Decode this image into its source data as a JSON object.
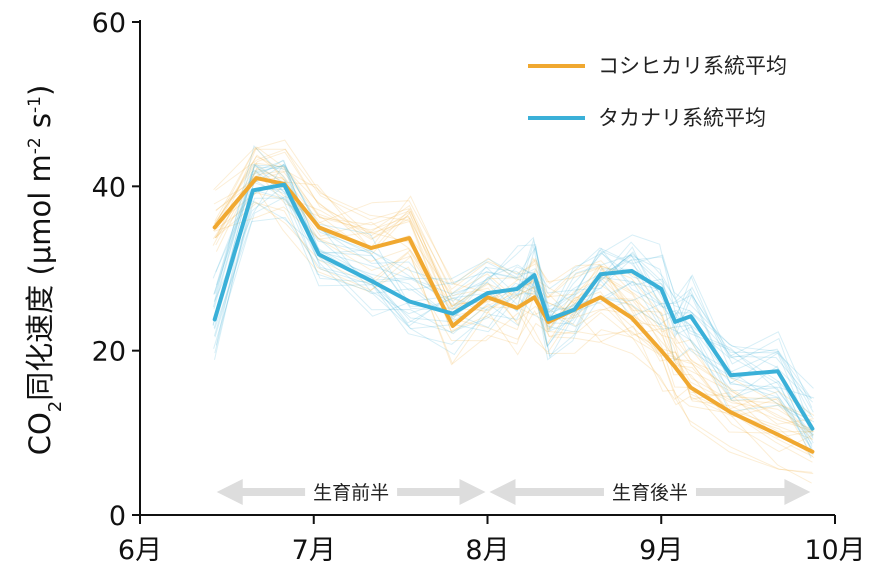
{
  "chart_data": {
    "type": "line",
    "ylabel": "CO₂同化速度 (μmol m⁻² s⁻¹)",
    "ylabel_parts": {
      "co": "CO",
      "sub": "2",
      "rest": "同化速度 (μmol m",
      "exp1": "-2",
      "mid": " s",
      "exp2": "-1",
      "end": ")"
    },
    "ylim": [
      0,
      60
    ],
    "yticks": [
      0,
      20,
      40,
      60
    ],
    "xlim": [
      6.0,
      10.0
    ],
    "xticks": [
      {
        "value": 6,
        "label": "6月"
      },
      {
        "value": 7,
        "label": "7月"
      },
      {
        "value": 8,
        "label": "8月"
      },
      {
        "value": 9,
        "label": "9月"
      },
      {
        "value": 10,
        "label": "10月"
      }
    ],
    "grid": false,
    "legend_position": "top-right",
    "colors": {
      "koshihikari": "#F0A830",
      "takanari": "#3AB0D8",
      "arrow": "#DDDDDD"
    },
    "series": [
      {
        "name": "コシヒカリ系統平均",
        "color": "#F0A830",
        "x": [
          6.43,
          6.67,
          6.83,
          7.03,
          7.33,
          7.55,
          7.8,
          8.0,
          8.17,
          8.27,
          8.35,
          8.5,
          8.65,
          8.83,
          9.0,
          9.08,
          9.17,
          9.4,
          9.67,
          9.87
        ],
        "y": [
          35.0,
          41.0,
          40.3,
          35.0,
          32.5,
          33.7,
          23.0,
          26.5,
          25.2,
          26.5,
          23.5,
          25.0,
          26.5,
          24.0,
          20.0,
          18.0,
          15.5,
          12.5,
          9.8,
          7.7
        ]
      },
      {
        "name": "タカナリ系統平均",
        "color": "#3AB0D8",
        "x": [
          6.43,
          6.65,
          6.83,
          7.03,
          7.33,
          7.55,
          7.8,
          8.0,
          8.17,
          8.27,
          8.35,
          8.5,
          8.65,
          8.83,
          9.0,
          9.08,
          9.17,
          9.4,
          9.67,
          9.87
        ],
        "y": [
          23.8,
          39.5,
          40.2,
          31.7,
          28.5,
          26.0,
          24.5,
          27.0,
          27.5,
          29.2,
          23.8,
          25.0,
          29.3,
          29.7,
          27.5,
          23.5,
          24.2,
          17.0,
          17.5,
          10.5
        ]
      }
    ],
    "phases": [
      {
        "label": "生育前半",
        "start": 6.43,
        "end": 8.0
      },
      {
        "label": "生育後半",
        "start": 8.0,
        "end": 9.87
      }
    ]
  }
}
